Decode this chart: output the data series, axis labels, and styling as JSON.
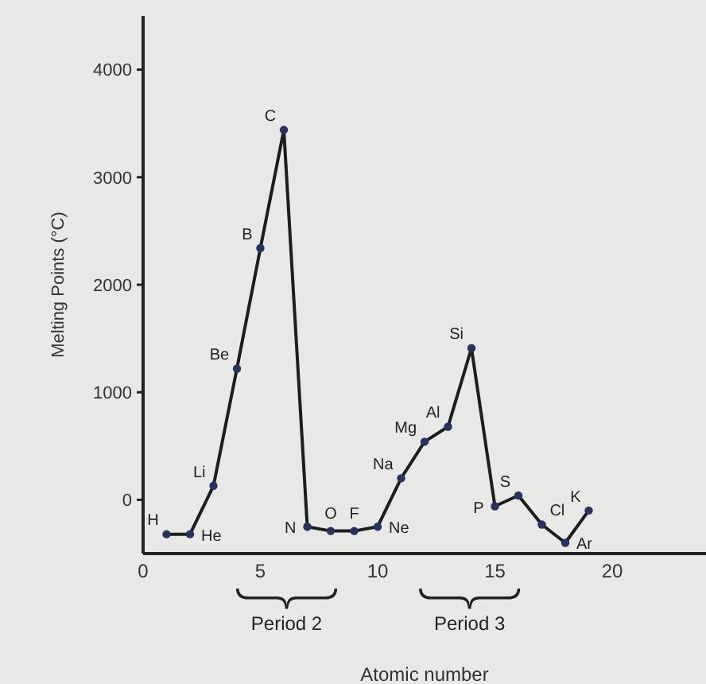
{
  "chart_data": {
    "type": "line",
    "xlabel": "Atomic number",
    "ylabel": "Melting Points (°C)",
    "x": [
      1,
      2,
      3,
      4,
      5,
      6,
      7,
      8,
      9,
      10,
      11,
      12,
      13,
      14,
      15,
      16,
      17,
      18,
      19
    ],
    "series": [
      {
        "color": "#27325e",
        "values": [
          -320,
          -320,
          130,
          1220,
          2340,
          3440,
          -250,
          -290,
          -290,
          -250,
          200,
          540,
          680,
          1410,
          -60,
          40,
          -230,
          -400,
          -100
        ]
      }
    ],
    "xlim": [
      0,
      24
    ],
    "ylim": [
      -500,
      4500
    ],
    "xticks": [
      0,
      5,
      10,
      15,
      20
    ],
    "yticks": [
      0,
      1000,
      2000,
      3000,
      4000
    ],
    "grid": false,
    "marker": "circle",
    "line_style": "solid",
    "annotations": [
      {
        "text": "H",
        "x": 1,
        "y": -320
      },
      {
        "text": "He",
        "x": 2,
        "y": -320
      },
      {
        "text": "Li",
        "x": 3,
        "y": 130
      },
      {
        "text": "Be",
        "x": 4,
        "y": 1220
      },
      {
        "text": "B",
        "x": 5,
        "y": 2340
      },
      {
        "text": "C",
        "x": 6,
        "y": 3440
      },
      {
        "text": "N",
        "x": 7,
        "y": -250
      },
      {
        "text": "O",
        "x": 8,
        "y": -290
      },
      {
        "text": "F",
        "x": 9,
        "y": -290
      },
      {
        "text": "Ne",
        "x": 10,
        "y": -250
      },
      {
        "text": "Na",
        "x": 11,
        "y": 200
      },
      {
        "text": "Mg",
        "x": 12,
        "y": 540
      },
      {
        "text": "Al",
        "x": 13,
        "y": 680
      },
      {
        "text": "Si",
        "x": 14,
        "y": 1410
      },
      {
        "text": "P",
        "x": 15,
        "y": -60
      },
      {
        "text": "S",
        "x": 16,
        "y": 40
      },
      {
        "text": "Cl",
        "x": 17,
        "y": -230
      },
      {
        "text": "Ar",
        "x": 18,
        "y": -400
      },
      {
        "text": "K",
        "x": 19,
        "y": -100
      },
      "Period 2",
      "Period 3"
    ]
  }
}
